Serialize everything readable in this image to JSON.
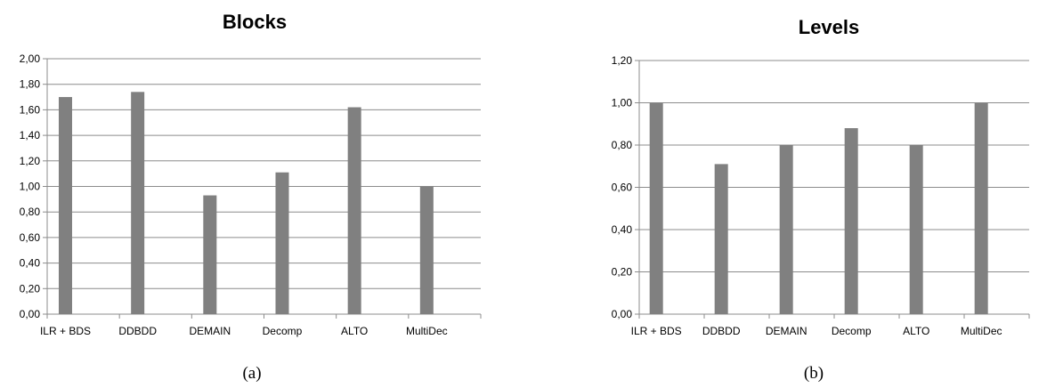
{
  "chart_data": [
    {
      "type": "bar",
      "title": "Blocks",
      "caption": "(a)",
      "categories": [
        "ILR + BDS",
        "DDBDD",
        "DEMAIN",
        "Decomp",
        "ALTO",
        "MultiDec"
      ],
      "values": [
        1.7,
        1.74,
        0.93,
        1.11,
        1.62,
        1.0
      ],
      "ylim": [
        0,
        2.0
      ],
      "yticks": [
        "0,00",
        "0,20",
        "0,40",
        "0,60",
        "0,80",
        "1,00",
        "1,20",
        "1,40",
        "1,60",
        "1,80",
        "2,00"
      ],
      "xlabel": "",
      "ylabel": "",
      "grid": true,
      "bar_color": "#808080"
    },
    {
      "type": "bar",
      "title": "Levels",
      "caption": "(b)",
      "categories": [
        "ILR + BDS",
        "DDBDD",
        "DEMAIN",
        "Decomp",
        "ALTO",
        "MultiDec"
      ],
      "values": [
        1.0,
        0.71,
        0.8,
        0.88,
        0.8,
        1.0
      ],
      "ylim": [
        0,
        1.2
      ],
      "yticks": [
        "0,00",
        "0,20",
        "0,40",
        "0,60",
        "0,80",
        "1,00",
        "1,20"
      ],
      "xlabel": "",
      "ylabel": "",
      "grid": true,
      "bar_color": "#808080"
    }
  ]
}
